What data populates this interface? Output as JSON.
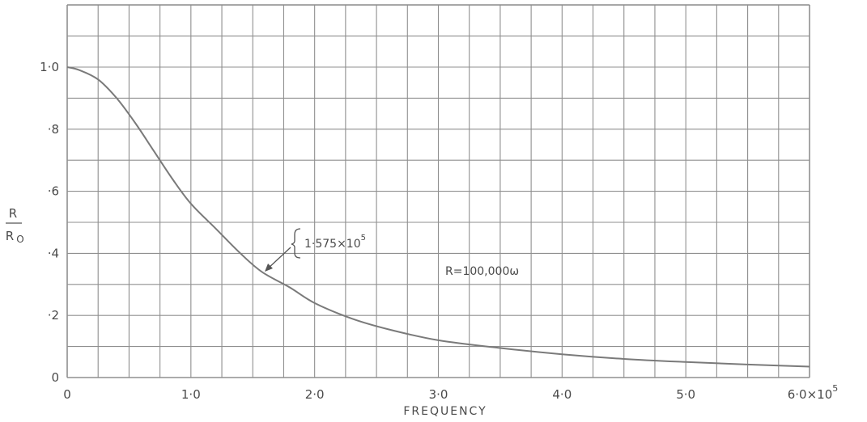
{
  "chart_data": {
    "type": "line",
    "title": "",
    "xlabel": "FREQUENCY",
    "ylabel_num": "R",
    "ylabel_den": "R",
    "ylabel_den_sub": "O",
    "xlim": [
      0,
      600000
    ],
    "ylim": [
      0,
      1.0
    ],
    "grid": true,
    "x_ticks": [
      {
        "value": 0,
        "label": "0"
      },
      {
        "value": 100000,
        "label": "1·0"
      },
      {
        "value": 200000,
        "label": "2·0"
      },
      {
        "value": 300000,
        "label": "3·0"
      },
      {
        "value": 400000,
        "label": "4·0"
      },
      {
        "value": 500000,
        "label": "5·0"
      },
      {
        "value": 600000,
        "label": "6·0×10",
        "sup": "5"
      }
    ],
    "y_ticks": [
      {
        "value": 0,
        "label": "0"
      },
      {
        "value": 0.2,
        "label": "·2"
      },
      {
        "value": 0.4,
        "label": "·4"
      },
      {
        "value": 0.6,
        "label": "·6"
      },
      {
        "value": 0.8,
        "label": "·8"
      },
      {
        "value": 1.0,
        "label": "1·0"
      }
    ],
    "series": [
      {
        "x": [
          0,
          10000,
          25000,
          40000,
          55000,
          70000,
          85000,
          100000,
          120000,
          140000,
          157500,
          180000,
          200000,
          230000,
          260000,
          300000,
          350000,
          400000,
          450000,
          500000,
          550000,
          600000
        ],
        "y": [
          1.0,
          0.99,
          0.96,
          0.9,
          0.82,
          0.73,
          0.64,
          0.56,
          0.48,
          0.4,
          0.34,
          0.29,
          0.24,
          0.19,
          0.155,
          0.12,
          0.095,
          0.075,
          0.06,
          0.05,
          0.042,
          0.035
        ],
        "color": "#7a7a7a"
      }
    ],
    "annotations": [
      {
        "text": "1·575×10",
        "sup": "5",
        "x": 157500,
        "y": 0.34
      },
      {
        "text": "R=100,000ω"
      }
    ]
  }
}
